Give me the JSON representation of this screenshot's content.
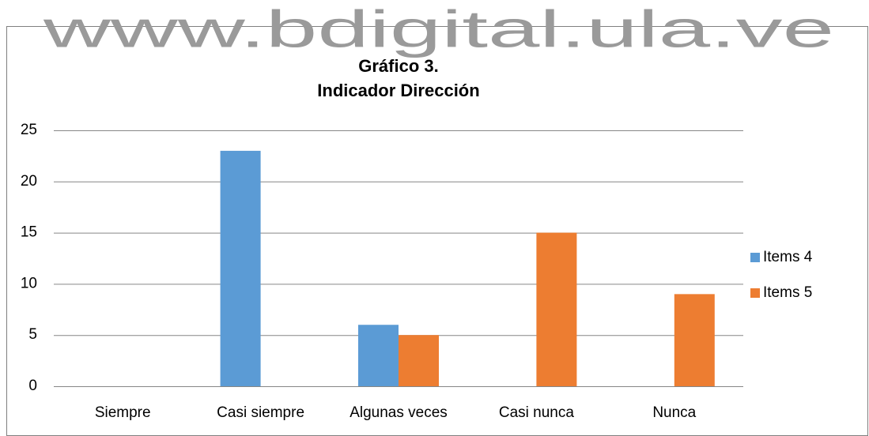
{
  "chart_data": {
    "type": "bar",
    "watermark": "www.bdigital.ula.ve",
    "title": "Gráfico 3.",
    "subtitle": "Indicador Dirección",
    "categories": [
      "Siempre",
      "Casi siempre",
      "Algunas veces",
      "Casi nunca",
      "Nunca"
    ],
    "series": [
      {
        "name": "Items 4",
        "color": "#5b9bd5",
        "values": [
          0,
          23,
          6,
          0,
          0
        ]
      },
      {
        "name": "Items 5",
        "color": "#ed7d31",
        "values": [
          0,
          0,
          5,
          15,
          9
        ]
      }
    ],
    "ylim": [
      0,
      25
    ],
    "yticks": [
      0,
      5,
      10,
      15,
      20,
      25
    ],
    "grid": true,
    "legend": "right"
  }
}
